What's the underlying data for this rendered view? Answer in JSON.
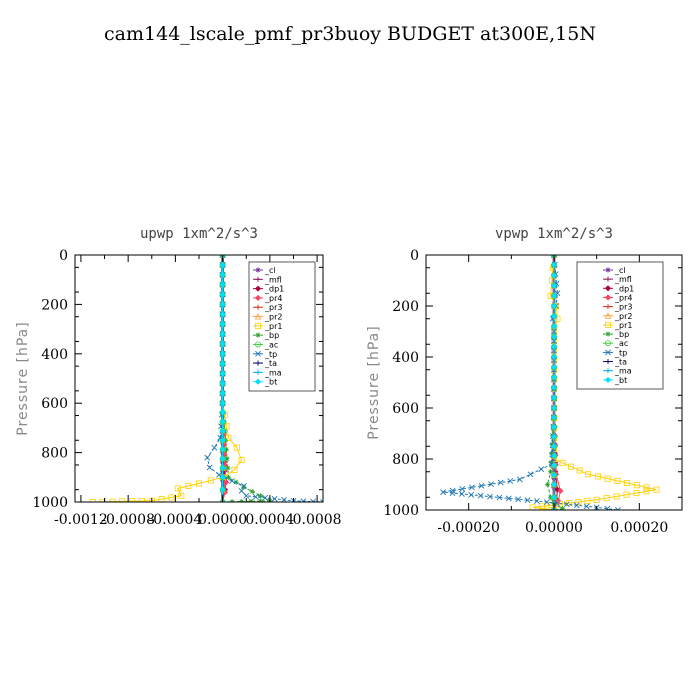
{
  "figure": {
    "title": "cam144_lscale_pmf_pr3buoy  BUDGET at300E,15N"
  },
  "chart_data": [
    {
      "type": "line",
      "title": "upwp   1xm^2/s^3",
      "ylabel": "Pressure [hPa]",
      "xlim": [
        -0.00125,
        0.00085
      ],
      "ylim": [
        1000,
        0
      ],
      "x_ticks": [
        -0.0012,
        -0.0008,
        -0.0004,
        0.0,
        0.0004,
        0.0008
      ],
      "x_tick_labels": [
        "-0.0012",
        "-0.0008",
        "-0.0004",
        "0.0000",
        "0.0004",
        "0.0008"
      ],
      "y_ticks": [
        0,
        200,
        400,
        600,
        800,
        1000
      ],
      "legend_position": "top-right",
      "series": [
        {
          "name": "_cl",
          "color": "#7030a0",
          "marker": "star",
          "x": [
            0,
            0,
            0,
            0,
            0,
            0,
            0
          ],
          "y": [
            0,
            200,
            400,
            600,
            800,
            950,
            1000
          ]
        },
        {
          "name": "_mfl",
          "color": "#8b1a5a",
          "marker": "plus",
          "x": [
            0,
            0,
            0,
            0,
            0,
            0,
            0
          ],
          "y": [
            0,
            200,
            400,
            600,
            800,
            950,
            1000
          ]
        },
        {
          "name": "_dp1",
          "color": "#b0003a",
          "marker": "diamond",
          "x": [
            0,
            0,
            0,
            0,
            1e-05,
            2e-05,
            0
          ],
          "y": [
            0,
            200,
            400,
            600,
            800,
            950,
            1000
          ]
        },
        {
          "name": "_pr4",
          "color": "#ff4060",
          "marker": "diamond",
          "x": [
            0,
            0,
            0,
            0,
            2e-05,
            3e-05,
            2e-05,
            0
          ],
          "y": [
            0,
            200,
            400,
            600,
            850,
            920,
            960,
            1000
          ]
        },
        {
          "name": "_pr3",
          "color": "#e0301e",
          "marker": "plus",
          "x": [
            0,
            0,
            0,
            0,
            0,
            0
          ],
          "y": [
            0,
            200,
            400,
            600,
            900,
            1000
          ]
        },
        {
          "name": "_pr2",
          "color": "#ffa040",
          "marker": "triangle",
          "x": [
            0,
            0,
            0,
            0,
            0,
            0
          ],
          "y": [
            0,
            200,
            400,
            600,
            900,
            1000
          ]
        },
        {
          "name": "_pr1",
          "color": "#ffd000",
          "marker": "square",
          "x": [
            0,
            0,
            0,
            0,
            5e-05,
            0.00012,
            0.00016,
            0.0001,
            0.0,
            -0.0002,
            -0.00038,
            -0.00035,
            -0.0006,
            -0.0011
          ],
          "y": [
            0,
            200,
            400,
            600,
            740,
            780,
            830,
            870,
            900,
            925,
            945,
            975,
            995,
            1000
          ]
        },
        {
          "name": "_bp",
          "color": "#2ca02c",
          "marker": "star",
          "x": [
            0,
            0,
            0,
            0,
            5e-05,
            0.00018,
            0.00032,
            0.0004,
            0.0
          ],
          "y": [
            0,
            200,
            400,
            600,
            900,
            940,
            975,
            995,
            1000
          ]
        },
        {
          "name": "_ac",
          "color": "#40d040",
          "marker": "circle",
          "x": [
            0,
            0,
            0,
            0,
            0,
            0
          ],
          "y": [
            0,
            200,
            400,
            600,
            900,
            1000
          ]
        },
        {
          "name": "_tp",
          "color": "#1f77b4",
          "marker": "x",
          "x": [
            0,
            0,
            0,
            0,
            -2e-05,
            -7e-05,
            -0.00013,
            -0.00011,
            -3e-05,
            8e-05,
            0.00018,
            0.00016,
            0.0002,
            0.0006,
            0.00085
          ],
          "y": [
            0,
            200,
            400,
            600,
            740,
            780,
            820,
            860,
            890,
            915,
            935,
            955,
            975,
            995,
            1000
          ]
        },
        {
          "name": "_ta",
          "color": "#00007a",
          "marker": "plus",
          "x": [
            0,
            0,
            0,
            0,
            0,
            0
          ],
          "y": [
            0,
            200,
            400,
            600,
            900,
            1000
          ]
        },
        {
          "name": "_ma",
          "color": "#00b0f0",
          "marker": "none",
          "x": [
            0,
            0,
            0,
            0,
            0,
            0
          ],
          "y": [
            0,
            200,
            400,
            600,
            900,
            1000
          ]
        },
        {
          "name": "_bt",
          "color": "#00e0ff",
          "marker": "diamond",
          "x": [
            0,
            0,
            0,
            0,
            0,
            0
          ],
          "y": [
            0,
            200,
            400,
            600,
            900,
            1000
          ]
        }
      ]
    },
    {
      "type": "line",
      "title": "vpwp   1xm^2/s^3",
      "ylabel": "Pressure [hPa]",
      "xlim": [
        -0.0003,
        0.0003
      ],
      "ylim": [
        1000,
        0
      ],
      "x_ticks": [
        -0.0002,
        0.0,
        0.0002
      ],
      "x_tick_labels": [
        "-0.00020",
        "0.00000",
        "0.00020"
      ],
      "y_ticks": [
        0,
        200,
        400,
        600,
        800,
        1000
      ],
      "legend_position": "top-right",
      "series": [
        {
          "name": "_cl",
          "color": "#7030a0",
          "marker": "star",
          "x": [
            0,
            0,
            0,
            0,
            0,
            0,
            0
          ],
          "y": [
            0,
            200,
            400,
            600,
            800,
            950,
            1000
          ]
        },
        {
          "name": "_mfl",
          "color": "#8b1a5a",
          "marker": "plus",
          "x": [
            0,
            0,
            0,
            0,
            0,
            0,
            0
          ],
          "y": [
            0,
            200,
            400,
            600,
            800,
            950,
            1000
          ]
        },
        {
          "name": "_dp1",
          "color": "#b0003a",
          "marker": "diamond",
          "x": [
            0,
            0,
            0,
            0,
            3e-06,
            8e-06,
            6e-06,
            0.0
          ],
          "y": [
            0,
            200,
            400,
            600,
            850,
            920,
            960,
            1000
          ]
        },
        {
          "name": "_pr4",
          "color": "#ff4060",
          "marker": "diamond",
          "x": [
            0,
            0,
            0,
            0,
            5e-06,
            1.5e-05,
            1e-05,
            0.0
          ],
          "y": [
            0,
            200,
            400,
            600,
            860,
            925,
            965,
            1000
          ]
        },
        {
          "name": "_pr3",
          "color": "#e0301e",
          "marker": "plus",
          "x": [
            0,
            0,
            0,
            0,
            0,
            0
          ],
          "y": [
            0,
            200,
            400,
            600,
            900,
            1000
          ]
        },
        {
          "name": "_pr2",
          "color": "#ffa040",
          "marker": "triangle",
          "x": [
            0,
            0,
            0,
            0,
            0,
            0
          ],
          "y": [
            0,
            200,
            400,
            600,
            900,
            1000
          ]
        },
        {
          "name": "_pr1",
          "color": "#ffd000",
          "marker": "square",
          "x": [
            0,
            -5e-06,
            -8e-06,
            5e-06,
            8e-06,
            0.0,
            0.0,
            0.0,
            8e-05,
            0.00024,
            0.0001,
            -5e-05,
            0.0
          ],
          "y": [
            0,
            100,
            160,
            200,
            250,
            300,
            600,
            800,
            860,
            920,
            960,
            990,
            1000
          ]
        },
        {
          "name": "_bp",
          "color": "#2ca02c",
          "marker": "star",
          "x": [
            0,
            0,
            0,
            0,
            -8e-06,
            -1.5e-05,
            -8e-06,
            0.0,
            2e-05,
            0.0
          ],
          "y": [
            0,
            200,
            400,
            600,
            850,
            900,
            950,
            975,
            995,
            1000
          ]
        },
        {
          "name": "_ac",
          "color": "#40d040",
          "marker": "circle",
          "x": [
            0,
            0,
            0,
            0,
            0,
            0
          ],
          "y": [
            0,
            200,
            400,
            600,
            900,
            1000
          ]
        },
        {
          "name": "_tp",
          "color": "#1f77b4",
          "marker": "x",
          "x": [
            0,
            8e-06,
            5e-06,
            -3e-06,
            0.0,
            0.0,
            -5e-06,
            -8e-05,
            -0.00026,
            -4e-05,
            0.0001,
            0.00015
          ],
          "y": [
            0,
            150,
            200,
            250,
            300,
            600,
            820,
            880,
            930,
            965,
            990,
            1000
          ]
        },
        {
          "name": "_ta",
          "color": "#00007a",
          "marker": "plus",
          "x": [
            0,
            0,
            0,
            0,
            0,
            0
          ],
          "y": [
            0,
            200,
            400,
            600,
            900,
            1000
          ]
        },
        {
          "name": "_ma",
          "color": "#00b0f0",
          "marker": "none",
          "x": [
            0,
            0,
            0,
            0,
            0,
            0
          ],
          "y": [
            0,
            200,
            400,
            600,
            900,
            1000
          ]
        },
        {
          "name": "_bt",
          "color": "#00e0ff",
          "marker": "diamond",
          "x": [
            0,
            0,
            0,
            0,
            0,
            0
          ],
          "y": [
            0,
            200,
            400,
            600,
            900,
            1000
          ]
        }
      ]
    }
  ]
}
